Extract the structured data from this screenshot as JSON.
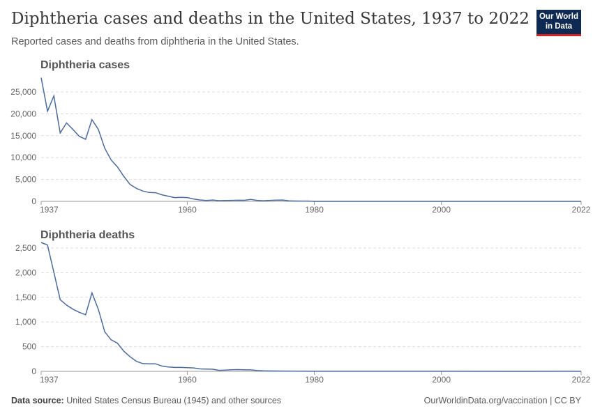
{
  "header": {
    "title": "Diphtheria cases and deaths in the United States, 1937 to 2022",
    "subtitle": "Reported cases and deaths from diphtheria in the United States.",
    "logo": "Our World in Data"
  },
  "footer": {
    "source_label": "Data source:",
    "source": "United States Census Bureau (1945) and other sources",
    "credit": "OurWorldinData.org/vaccination | CC BY"
  },
  "colors": {
    "line": "#4c6a9c",
    "grid": "#dddddd"
  },
  "chart_data": [
    {
      "type": "line",
      "title": "Diphtheria cases",
      "xlim": [
        1937,
        2022
      ],
      "ylim": [
        0,
        25000
      ],
      "xticks": [
        1937,
        1960,
        1980,
        2000,
        2022
      ],
      "yticks": [
        0,
        5000,
        10000,
        15000,
        20000,
        25000
      ],
      "ytick_labels": [
        "0",
        "5,000",
        "10,000",
        "15,000",
        "20,000",
        "25,000"
      ],
      "grid": true,
      "points": [
        [
          1937,
          28260
        ],
        [
          1938,
          20610
        ],
        [
          1939,
          24090
        ],
        [
          1940,
          15630
        ],
        [
          1941,
          17930
        ],
        [
          1942,
          16430
        ],
        [
          1943,
          14880
        ],
        [
          1944,
          14190
        ],
        [
          1945,
          18680
        ],
        [
          1946,
          16430
        ],
        [
          1947,
          12150
        ],
        [
          1948,
          9480
        ],
        [
          1949,
          7870
        ],
        [
          1950,
          5730
        ],
        [
          1951,
          3850
        ],
        [
          1952,
          2940
        ],
        [
          1953,
          2360
        ],
        [
          1954,
          2030
        ],
        [
          1955,
          1980
        ],
        [
          1956,
          1500
        ],
        [
          1957,
          1180
        ],
        [
          1958,
          860
        ],
        [
          1959,
          910
        ],
        [
          1960,
          860
        ],
        [
          1961,
          540
        ],
        [
          1962,
          320
        ],
        [
          1963,
          210
        ],
        [
          1964,
          300
        ],
        [
          1965,
          160
        ],
        [
          1966,
          210
        ],
        [
          1967,
          220
        ],
        [
          1968,
          260
        ],
        [
          1969,
          240
        ],
        [
          1970,
          440
        ],
        [
          1971,
          220
        ],
        [
          1972,
          150
        ],
        [
          1973,
          230
        ],
        [
          1974,
          270
        ],
        [
          1975,
          300
        ],
        [
          1976,
          130
        ],
        [
          1977,
          80
        ],
        [
          1978,
          70
        ],
        [
          1979,
          60
        ],
        [
          1980,
          5
        ],
        [
          1985,
          3
        ],
        [
          1990,
          4
        ],
        [
          1995,
          1
        ],
        [
          2000,
          1
        ],
        [
          2005,
          0
        ],
        [
          2010,
          0
        ],
        [
          2015,
          0
        ],
        [
          2022,
          1
        ]
      ]
    },
    {
      "type": "line",
      "title": "Diphtheria deaths",
      "xlim": [
        1937,
        2022
      ],
      "ylim": [
        0,
        2500
      ],
      "xticks": [
        1937,
        1960,
        1980,
        2000,
        2022
      ],
      "yticks": [
        0,
        500,
        1000,
        1500,
        2000,
        2500
      ],
      "ytick_labels": [
        "0",
        "500",
        "1,000",
        "1,500",
        "2,000",
        "2,500"
      ],
      "grid": true,
      "points": [
        [
          1937,
          2613
        ],
        [
          1938,
          2559
        ],
        [
          1939,
          2008
        ],
        [
          1940,
          1452
        ],
        [
          1941,
          1343
        ],
        [
          1942,
          1260
        ],
        [
          1943,
          1196
        ],
        [
          1944,
          1147
        ],
        [
          1945,
          1590
        ],
        [
          1946,
          1255
        ],
        [
          1947,
          802
        ],
        [
          1948,
          640
        ],
        [
          1949,
          571
        ],
        [
          1950,
          408
        ],
        [
          1951,
          295
        ],
        [
          1952,
          202
        ],
        [
          1953,
          157
        ],
        [
          1954,
          153
        ],
        [
          1955,
          153
        ],
        [
          1956,
          108
        ],
        [
          1957,
          89
        ],
        [
          1958,
          79
        ],
        [
          1959,
          79
        ],
        [
          1960,
          74
        ],
        [
          1961,
          69
        ],
        [
          1962,
          49
        ],
        [
          1963,
          45
        ],
        [
          1964,
          42
        ],
        [
          1965,
          20
        ],
        [
          1966,
          25
        ],
        [
          1967,
          32
        ],
        [
          1968,
          35
        ],
        [
          1969,
          30
        ],
        [
          1970,
          30
        ],
        [
          1971,
          15
        ],
        [
          1972,
          10
        ],
        [
          1975,
          5
        ],
        [
          1980,
          1
        ],
        [
          1990,
          1
        ],
        [
          2000,
          1
        ],
        [
          2010,
          0
        ],
        [
          2020,
          1
        ],
        [
          2022,
          0
        ]
      ]
    }
  ]
}
